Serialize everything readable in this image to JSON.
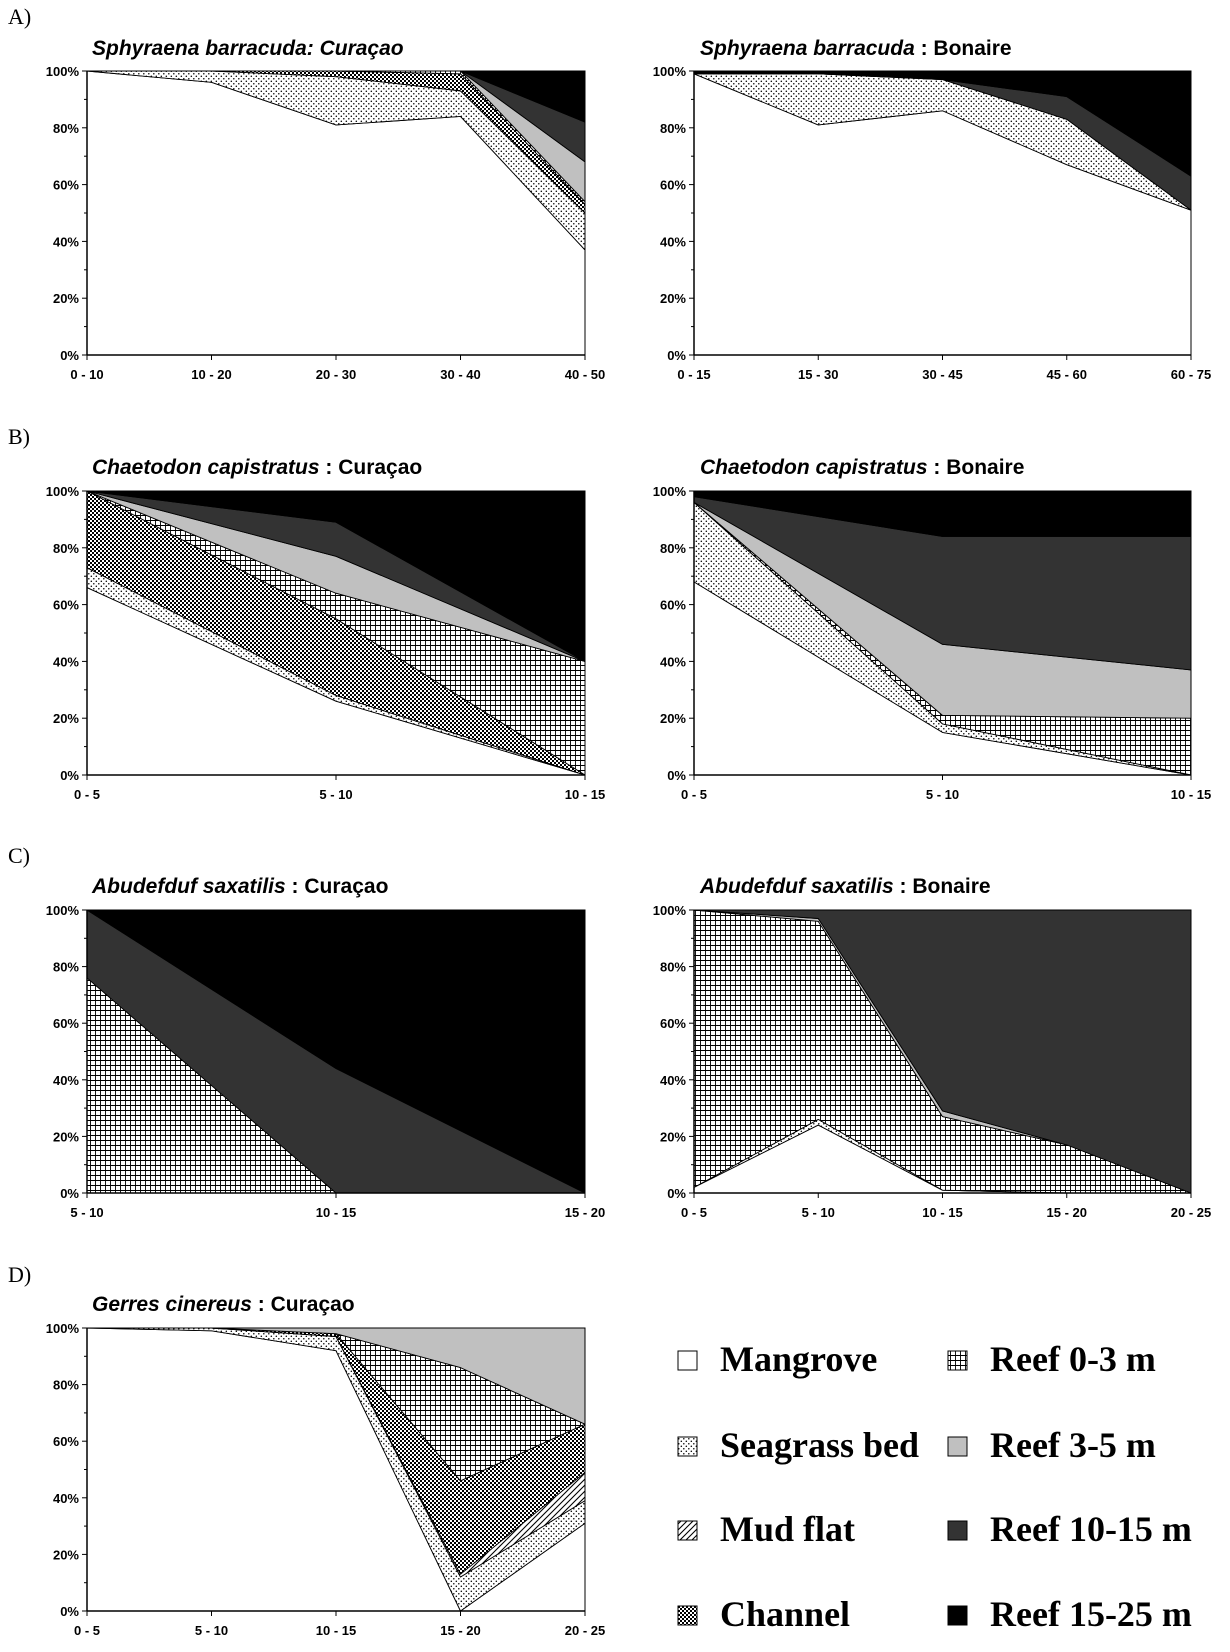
{
  "legend": [
    {
      "key": "mangrove",
      "label": "Mangrove",
      "fill": "#ffffff"
    },
    {
      "key": "seagrass",
      "label": "Seagrass bed",
      "fill": "dots"
    },
    {
      "key": "mudflat",
      "label": "Mud flat",
      "fill": "diag"
    },
    {
      "key": "channel",
      "label": "Channel",
      "fill": "check"
    },
    {
      "key": "reef03",
      "label": "Reef 0-3 m",
      "fill": "grid"
    },
    {
      "key": "reef35",
      "label": "Reef 3-5 m",
      "fill": "#c0c0c0"
    },
    {
      "key": "reef1015",
      "label": "Reef 10-15 m",
      "fill": "#333333"
    },
    {
      "key": "reef1525",
      "label": "Reef 15-25 m",
      "fill": "#000000"
    }
  ],
  "chart_data": [
    {
      "type": "area",
      "panel_label": "A)",
      "title_italic": "Sphyraena barracuda: Curaçao",
      "title_plain": "",
      "categories": [
        "0 - 10",
        "10 - 20",
        "20 - 30",
        "30 - 40",
        "40 - 50"
      ],
      "y_ticks": [
        "0%",
        "20%",
        "40%",
        "60%",
        "80%",
        "100%"
      ],
      "ylim": [
        0,
        100
      ],
      "series": [
        {
          "key": "mangrove",
          "values": [
            100,
            96,
            81,
            84,
            37
          ]
        },
        {
          "key": "seagrass",
          "values": [
            0,
            4,
            17,
            9,
            13
          ]
        },
        {
          "key": "channel",
          "values": [
            0,
            0,
            2,
            6,
            3
          ]
        },
        {
          "key": "reef03",
          "values": [
            0,
            0,
            0,
            1,
            1
          ]
        },
        {
          "key": "reef35",
          "values": [
            0,
            0,
            0,
            0,
            14
          ]
        },
        {
          "key": "reef1015",
          "values": [
            0,
            0,
            0,
            0,
            14
          ]
        },
        {
          "key": "reef1525",
          "values": [
            0,
            0,
            0,
            0,
            18
          ]
        }
      ]
    },
    {
      "type": "area",
      "panel_label": "",
      "title_italic": "Sphyraena barracuda",
      "title_plain": " : Bonaire",
      "categories": [
        "0 - 15",
        "15 - 30",
        "30 - 45",
        "45 - 60",
        "60 - 75"
      ],
      "y_ticks": [
        "0%",
        "20%",
        "40%",
        "60%",
        "80%",
        "100%"
      ],
      "ylim": [
        0,
        100
      ],
      "series": [
        {
          "key": "mangrove",
          "values": [
            99,
            81,
            86,
            67,
            51
          ]
        },
        {
          "key": "seagrass",
          "values": [
            0,
            18,
            11,
            16,
            0
          ]
        },
        {
          "key": "reef1015",
          "values": [
            0,
            0,
            0,
            8,
            12
          ]
        },
        {
          "key": "reef1525",
          "values": [
            1,
            1,
            3,
            9,
            37
          ]
        }
      ]
    },
    {
      "type": "area",
      "panel_label": "B)",
      "title_italic": "Chaetodon capistratus",
      "title_plain": " : Curaçao",
      "categories": [
        "0 - 5",
        "5 - 10",
        "10 - 15"
      ],
      "y_ticks": [
        "0%",
        "20%",
        "40%",
        "60%",
        "80%",
        "100%"
      ],
      "ylim": [
        0,
        100
      ],
      "series": [
        {
          "key": "mangrove",
          "values": [
            66,
            26,
            0
          ]
        },
        {
          "key": "seagrass",
          "values": [
            7,
            2,
            0
          ]
        },
        {
          "key": "channel",
          "values": [
            27,
            27,
            0
          ]
        },
        {
          "key": "reef03",
          "values": [
            0,
            9,
            40
          ]
        },
        {
          "key": "reef35",
          "values": [
            0,
            13,
            0
          ]
        },
        {
          "key": "reef1015",
          "values": [
            0,
            12,
            0
          ]
        },
        {
          "key": "reef1525",
          "values": [
            0,
            11,
            60
          ]
        }
      ]
    },
    {
      "type": "area",
      "panel_label": "",
      "title_italic": "Chaetodon capistratus",
      "title_plain": " : Bonaire",
      "categories": [
        "0 - 5",
        "5 - 10",
        "10 - 15"
      ],
      "y_ticks": [
        "0%",
        "20%",
        "40%",
        "60%",
        "80%",
        "100%"
      ],
      "ylim": [
        0,
        100
      ],
      "series": [
        {
          "key": "mangrove",
          "values": [
            68,
            15,
            0
          ]
        },
        {
          "key": "seagrass",
          "values": [
            28,
            3,
            0
          ]
        },
        {
          "key": "reef03",
          "values": [
            0,
            3,
            20
          ]
        },
        {
          "key": "reef35",
          "values": [
            0,
            25,
            17
          ]
        },
        {
          "key": "reef1015",
          "values": [
            2,
            38,
            47
          ]
        },
        {
          "key": "reef1525",
          "values": [
            2,
            16,
            16
          ]
        }
      ]
    },
    {
      "type": "area",
      "panel_label": "C)",
      "title_italic": "Abudefduf saxatilis",
      "title_plain": " : Curaçao",
      "categories": [
        "5 - 10",
        "10 - 15",
        "15 - 20"
      ],
      "y_ticks": [
        "0%",
        "20%",
        "40%",
        "60%",
        "80%",
        "100%"
      ],
      "ylim": [
        0,
        100
      ],
      "series": [
        {
          "key": "reef03",
          "values": [
            76,
            0,
            0
          ]
        },
        {
          "key": "reef1015",
          "values": [
            24,
            44,
            0
          ]
        },
        {
          "key": "reef1525",
          "values": [
            0,
            56,
            100
          ]
        }
      ]
    },
    {
      "type": "area",
      "panel_label": "",
      "title_italic": "Abudefduf saxatilis",
      "title_plain": " : Bonaire",
      "categories": [
        "0 - 5",
        "5 - 10",
        "10 - 15",
        "15 - 20",
        "20 - 25"
      ],
      "y_ticks": [
        "0%",
        "20%",
        "40%",
        "60%",
        "80%",
        "100%"
      ],
      "ylim": [
        0,
        100
      ],
      "series": [
        {
          "key": "mangrove",
          "values": [
            2,
            24,
            1,
            0,
            0
          ]
        },
        {
          "key": "seagrass",
          "values": [
            0,
            2,
            0,
            0,
            0
          ]
        },
        {
          "key": "reef03",
          "values": [
            98,
            70,
            26,
            17,
            0
          ]
        },
        {
          "key": "reef35",
          "values": [
            0,
            1,
            2,
            0,
            0
          ]
        },
        {
          "key": "reef1015",
          "values": [
            0,
            3,
            71,
            83,
            100
          ]
        }
      ]
    },
    {
      "type": "area",
      "panel_label": "D)",
      "title_italic": "Gerres cinereus",
      "title_plain": " : Curaçao",
      "categories": [
        "0 - 5",
        "5 - 10",
        "10 - 15",
        "15 - 20",
        "20 - 25"
      ],
      "y_ticks": [
        "0%",
        "20%",
        "40%",
        "60%",
        "80%",
        "100%"
      ],
      "ylim": [
        0,
        100
      ],
      "series": [
        {
          "key": "mangrove",
          "values": [
            100,
            99,
            92,
            0,
            31
          ]
        },
        {
          "key": "seagrass",
          "values": [
            0,
            1,
            5,
            12,
            8
          ]
        },
        {
          "key": "mudflat",
          "values": [
            0,
            0,
            0,
            1,
            10
          ]
        },
        {
          "key": "channel",
          "values": [
            0,
            0,
            1,
            33,
            17
          ]
        },
        {
          "key": "reef03",
          "values": [
            0,
            0,
            0,
            40,
            0
          ]
        },
        {
          "key": "reef35",
          "values": [
            0,
            0,
            2,
            14,
            34
          ]
        }
      ]
    }
  ]
}
